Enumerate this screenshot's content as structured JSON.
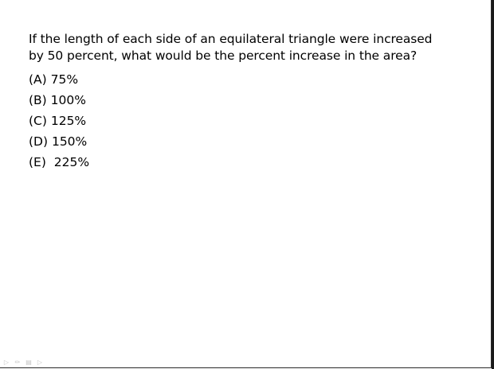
{
  "question": {
    "line1": "If the length of each side of an equilateral triangle were increased",
    "line2": "by 50 percent, what would be the percent increase in the area?"
  },
  "choices": [
    {
      "text": "(A) 75%"
    },
    {
      "text": "(B) 100%"
    },
    {
      "text": "(C) 125%"
    },
    {
      "text": "(D) 150%"
    },
    {
      "text": "(E)  225%"
    }
  ],
  "toolbar": {
    "icons": [
      "pointer-icon",
      "pen-icon",
      "menu-icon",
      "navigate-icon"
    ]
  }
}
